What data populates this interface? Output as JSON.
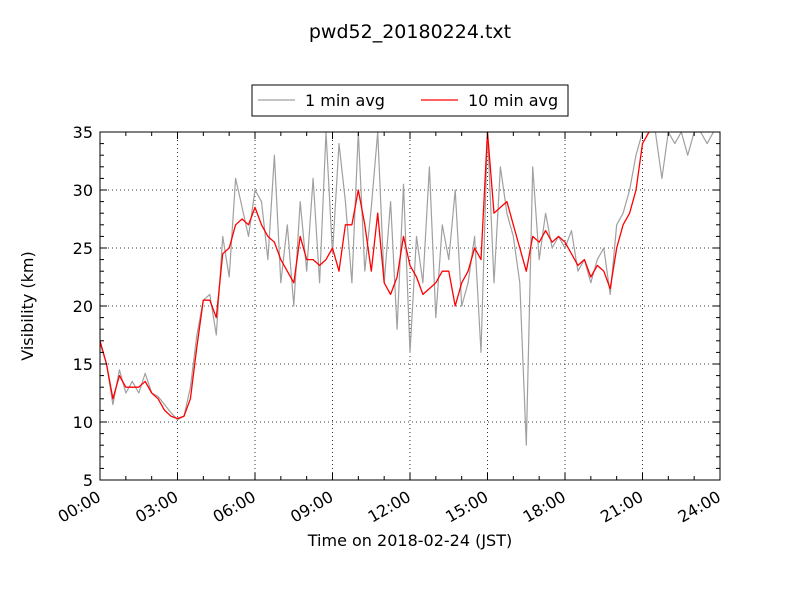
{
  "chart_data": {
    "type": "line",
    "title": "pwd52_20180224.txt",
    "xlabel": "Time on 2018-02-24 (JST)",
    "ylabel": "Visibility (km)",
    "xlim": [
      "00:00",
      "24:00"
    ],
    "ylim": [
      5,
      35
    ],
    "x_ticks": [
      "00:00",
      "03:00",
      "06:00",
      "09:00",
      "12:00",
      "15:00",
      "18:00",
      "21:00",
      "24:00"
    ],
    "y_ticks": [
      5,
      10,
      15,
      20,
      25,
      30,
      35
    ],
    "grid": true,
    "legend_position": "top-center",
    "series": [
      {
        "name": "1 min avg",
        "color": "#a0a0a0",
        "x_hours": [
          0,
          0.25,
          0.5,
          0.75,
          1,
          1.25,
          1.5,
          1.75,
          2,
          2.25,
          2.5,
          2.75,
          3,
          3.25,
          3.5,
          3.75,
          4,
          4.25,
          4.5,
          4.75,
          5,
          5.25,
          5.5,
          5.75,
          6,
          6.25,
          6.5,
          6.75,
          7,
          7.25,
          7.5,
          7.75,
          8,
          8.25,
          8.5,
          8.75,
          9,
          9.25,
          9.5,
          9.75,
          10,
          10.25,
          10.5,
          10.75,
          11,
          11.25,
          11.5,
          11.75,
          12,
          12.25,
          12.5,
          12.75,
          13,
          13.25,
          13.5,
          13.75,
          14,
          14.25,
          14.5,
          14.75,
          15,
          15.25,
          15.5,
          15.75,
          16,
          16.25,
          16.5,
          16.75,
          17,
          17.25,
          17.5,
          17.75,
          18,
          18.25,
          18.5,
          18.75,
          19,
          19.25,
          19.5,
          19.75,
          20,
          20.25,
          20.5,
          20.75,
          21,
          21.25,
          21.5,
          21.75,
          22,
          22.25,
          22.5,
          22.75,
          23,
          23.25,
          23.5,
          23.75
        ],
        "values": [
          16.8,
          15,
          11.5,
          14.5,
          12.5,
          13.5,
          12.5,
          14.2,
          12.5,
          12.2,
          11.5,
          10.8,
          10.2,
          10.5,
          13,
          17.5,
          20.5,
          21,
          17.5,
          26,
          22.5,
          31,
          28.5,
          26,
          30,
          29,
          24,
          33,
          22,
          27,
          20,
          29,
          23,
          31,
          22,
          35,
          24.5,
          34,
          29,
          22,
          35,
          23,
          28.5,
          35,
          22,
          29,
          18,
          30.5,
          16,
          26,
          22,
          32,
          19,
          27,
          24,
          30,
          20,
          22,
          26,
          16,
          35,
          22,
          32,
          28,
          26,
          22,
          8,
          32,
          24,
          28,
          25,
          26,
          25,
          26.5,
          23,
          24,
          22,
          24,
          25,
          21,
          27,
          28,
          30,
          33,
          35,
          35,
          35,
          31,
          35,
          34,
          35,
          33,
          35,
          35,
          34,
          35
        ]
      },
      {
        "name": "10 min avg",
        "color": "#ff0000",
        "x_hours": [
          0,
          0.25,
          0.5,
          0.75,
          1,
          1.25,
          1.5,
          1.75,
          2,
          2.25,
          2.5,
          2.75,
          3,
          3.25,
          3.5,
          3.75,
          4,
          4.25,
          4.5,
          4.75,
          5,
          5.25,
          5.5,
          5.75,
          6,
          6.25,
          6.5,
          6.75,
          7,
          7.25,
          7.5,
          7.75,
          8,
          8.25,
          8.5,
          8.75,
          9,
          9.25,
          9.5,
          9.75,
          10,
          10.25,
          10.5,
          10.75,
          11,
          11.25,
          11.5,
          11.75,
          12,
          12.25,
          12.5,
          12.75,
          13,
          13.25,
          13.5,
          13.75,
          14,
          14.25,
          14.5,
          14.75,
          15,
          15.25,
          15.5,
          15.75,
          16,
          16.25,
          16.5,
          16.75,
          17,
          17.25,
          17.5,
          17.75,
          18,
          18.25,
          18.5,
          18.75,
          19,
          19.25,
          19.5,
          19.75,
          20,
          20.25,
          20.5,
          20.75,
          21,
          21.25
        ],
        "values": [
          17,
          15,
          12,
          14,
          13,
          13,
          13,
          13.5,
          12.5,
          12,
          11,
          10.5,
          10.3,
          10.5,
          12,
          16.5,
          20.5,
          20.5,
          19,
          24.5,
          25,
          27,
          27.5,
          27,
          28.5,
          27,
          26,
          25.5,
          24,
          23,
          22,
          26,
          24,
          24,
          23.5,
          24,
          25,
          23,
          27,
          27,
          30,
          27,
          23,
          28,
          22,
          21,
          22.5,
          26,
          23.5,
          22.5,
          21,
          21.5,
          22,
          23,
          23,
          20,
          22,
          23,
          25,
          24,
          35,
          28,
          28.5,
          29,
          27,
          25,
          23,
          26,
          25.5,
          26.5,
          25.5,
          26,
          25.5,
          24.5,
          23.5,
          24,
          22.5,
          23.5,
          23,
          21.5,
          25,
          27,
          28,
          30,
          34,
          35
        ]
      }
    ]
  }
}
